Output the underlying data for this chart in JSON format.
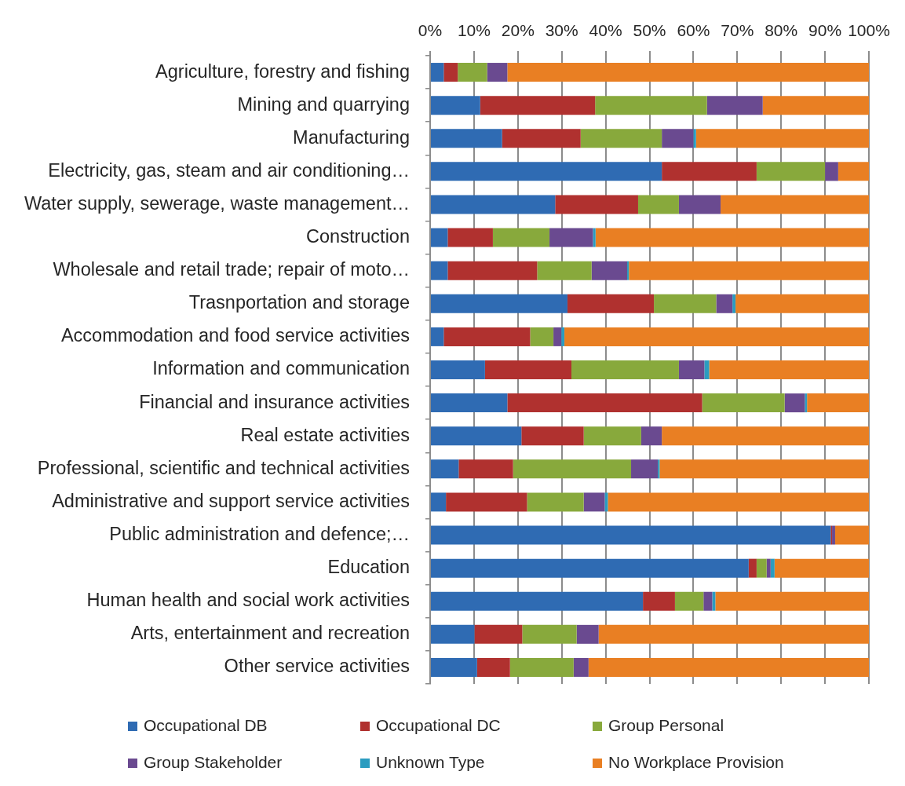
{
  "chart_data": {
    "type": "bar",
    "orientation": "horizontal",
    "stacked": true,
    "categories": [
      "Agriculture, forestry and fishing",
      "Mining and quarrying",
      "Manufacturing",
      "Electricity, gas, steam and air conditioning…",
      "Water supply, sewerage, waste management…",
      "Construction",
      "Wholesale and retail trade; repair of moto…",
      "Trasnportation and storage",
      "Accommodation and food service activities",
      "Information and communication",
      "Financial and insurance activities",
      "Real estate activities",
      "Professional, scientific and technical activities",
      "Administrative and support service activities",
      "Public administration and defence;…",
      "Education",
      "Human health and social work activities",
      "Arts, entertainment and recreation",
      "Other service activities"
    ],
    "series": [
      {
        "name": "Occupational DB",
        "color": "#2f6bb3",
        "values": [
          3.1,
          11.4,
          16.4,
          52.8,
          28.5,
          4.0,
          4.0,
          31.3,
          3.1,
          12.5,
          17.6,
          20.8,
          6.5,
          3.6,
          91.3,
          72.6,
          48.5,
          10.1,
          10.7
        ]
      },
      {
        "name": "Occupational DC",
        "color": "#b0312f",
        "values": [
          3.2,
          26.2,
          17.9,
          21.6,
          18.9,
          10.3,
          20.4,
          19.7,
          19.7,
          19.7,
          44.4,
          14.2,
          12.4,
          18.5,
          0.3,
          1.8,
          7.3,
          10.9,
          7.5
        ]
      },
      {
        "name": "Group Personal",
        "color": "#88a93c",
        "values": [
          6.7,
          25.5,
          18.5,
          15.6,
          9.3,
          12.9,
          12.4,
          14.2,
          5.3,
          24.5,
          18.8,
          13.1,
          26.9,
          12.9,
          0,
          2.3,
          6.5,
          12.4,
          14.5
        ]
      },
      {
        "name": "Group Stakeholder",
        "color": "#6a4a90",
        "values": [
          4.6,
          12.7,
          7.2,
          3.0,
          9.5,
          9.9,
          8.1,
          3.7,
          1.8,
          5.8,
          4.6,
          4.7,
          6.1,
          4.8,
          0.7,
          0.9,
          2.0,
          5.0,
          3.4
        ]
      },
      {
        "name": "Unknown Type",
        "color": "#2b9cc0",
        "values": [
          0,
          0,
          0.6,
          0,
          0,
          0.6,
          0.4,
          0.7,
          0.7,
          1.1,
          0.5,
          0,
          0.4,
          0.7,
          0,
          0.9,
          0.7,
          0,
          0
        ]
      },
      {
        "name": "No Workplace Provision",
        "color": "#e97f23",
        "values": [
          82.4,
          24.2,
          39.4,
          7.0,
          33.8,
          62.3,
          54.7,
          30.4,
          69.4,
          36.4,
          14.1,
          47.2,
          47.7,
          59.5,
          7.7,
          21.5,
          35.0,
          61.6,
          63.9
        ]
      }
    ],
    "xlim": [
      0,
      100
    ],
    "xticks": [
      {
        "value": 0,
        "label": "0%"
      },
      {
        "value": 10,
        "label": "10%"
      },
      {
        "value": 20,
        "label": "20%"
      },
      {
        "value": 30,
        "label": "30%"
      },
      {
        "value": 40,
        "label": "40%"
      },
      {
        "value": 50,
        "label": "50%"
      },
      {
        "value": 60,
        "label": "60%"
      },
      {
        "value": 70,
        "label": "70%"
      },
      {
        "value": 80,
        "label": "80%"
      },
      {
        "value": 90,
        "label": "90%"
      },
      {
        "value": 100,
        "label": "100%"
      }
    ],
    "grid": "x",
    "legend": "bottom"
  }
}
